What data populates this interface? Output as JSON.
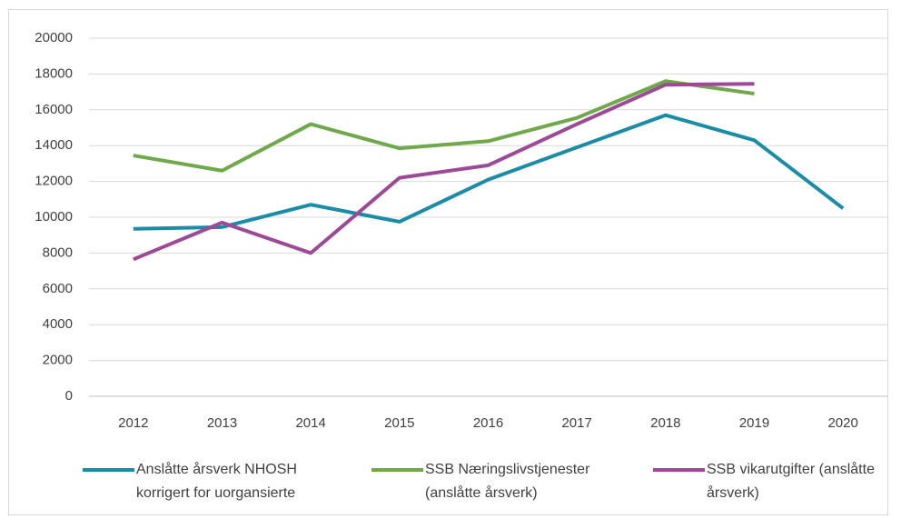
{
  "chart_data": {
    "type": "line",
    "categories": [
      "2012",
      "2013",
      "2014",
      "2015",
      "2016",
      "2017",
      "2018",
      "2019",
      "2020"
    ],
    "series": [
      {
        "name": "Anslåtte årsverk NHOSH korrigert for uorgansierte",
        "color": "#1b8ba6",
        "values": [
          9350,
          9450,
          10700,
          9750,
          12100,
          13900,
          15700,
          14300,
          10500
        ]
      },
      {
        "name": "SSB Næringslivstjenester (anslåtte årsverk)",
        "color": "#70a84b",
        "values": [
          13450,
          12600,
          15200,
          13850,
          14250,
          15550,
          17600,
          16900,
          null
        ]
      },
      {
        "name": "SSB vikarutgifter (anslåtte årsverk)",
        "color": "#9c4a96",
        "values": [
          7650,
          9700,
          8000,
          12200,
          12900,
          15200,
          17400,
          17450,
          null
        ]
      }
    ],
    "ylim": [
      0,
      20000
    ],
    "yticks": [
      0,
      2000,
      4000,
      6000,
      8000,
      10000,
      12000,
      14000,
      16000,
      18000,
      20000
    ],
    "grid": true
  }
}
